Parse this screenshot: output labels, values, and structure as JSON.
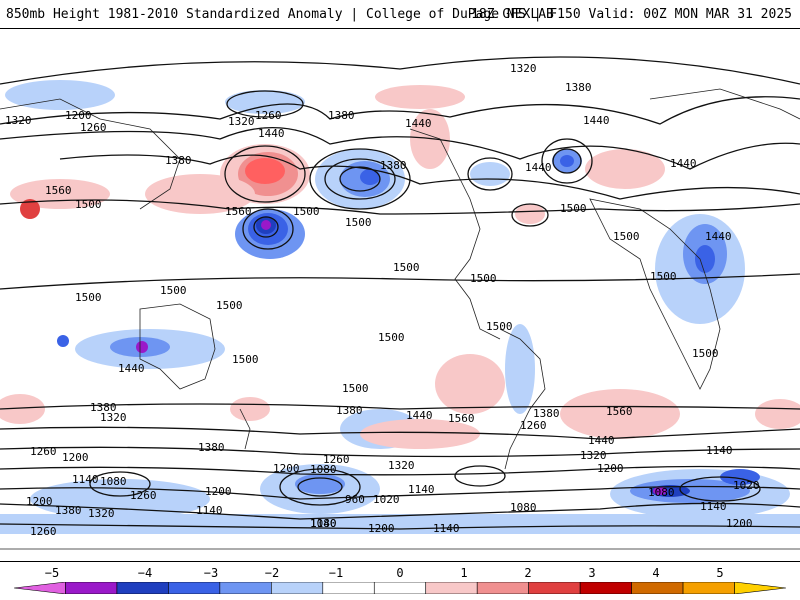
{
  "header": {
    "left_title": "850mb Height 1981-2010 Standardized Anomaly | College of DuPage NEXLAB",
    "right_title": "18Z GFS | F150 Valid: 00Z MON MAR 31 2025"
  },
  "map": {
    "type": "global-map",
    "projection": "cylindrical",
    "contour_labels": [
      {
        "text": "1320",
        "id": "c1320-top"
      },
      {
        "text": "1380",
        "id": "c1380-npac"
      },
      {
        "text": "1260",
        "id": "c1260-npac"
      },
      {
        "text": "1200",
        "id": "c1200-asia"
      },
      {
        "text": "1320",
        "id": "c1320-asia"
      },
      {
        "text": "1260",
        "id": "c1260-asia"
      },
      {
        "text": "1440",
        "id": "c1440-asia"
      },
      {
        "text": "1380",
        "id": "c1380-asia"
      },
      {
        "text": "1320",
        "id": "c1320-nat"
      },
      {
        "text": "1440",
        "id": "c1440-nat"
      },
      {
        "text": "1380",
        "id": "c1380-can"
      },
      {
        "text": "1440",
        "id": "c1440-can"
      },
      {
        "text": "1380",
        "id": "c1380-atl"
      },
      {
        "text": "1440",
        "id": "c1440-eur"
      },
      {
        "text": "1440",
        "id": "c1440-us"
      },
      {
        "text": "1500",
        "id": "c1500-atl"
      },
      {
        "text": "1500",
        "id": "c1500-afr"
      },
      {
        "text": "1440",
        "id": "c1440-afr"
      },
      {
        "text": "1500",
        "id": "c1500-afr2"
      },
      {
        "text": "1560",
        "id": "c1560-npac"
      },
      {
        "text": "1500",
        "id": "c1500-npac"
      },
      {
        "text": "1500",
        "id": "c1500-cpac"
      },
      {
        "text": "1560",
        "id": "c1560-ind"
      },
      {
        "text": "1500",
        "id": "c1500-ind"
      },
      {
        "text": "1500",
        "id": "c1500-ind2"
      },
      {
        "text": "1500",
        "id": "c1500-pac"
      },
      {
        "text": "1500",
        "id": "c1500-pac2"
      },
      {
        "text": "1500",
        "id": "c1500-pac3"
      },
      {
        "text": "1500",
        "id": "c1500-sam"
      },
      {
        "text": "1500",
        "id": "c1500-aus"
      },
      {
        "text": "1500",
        "id": "c1500-aus2"
      },
      {
        "text": "1500",
        "id": "c1500-afr3"
      },
      {
        "text": "1500",
        "id": "c1500-sio"
      },
      {
        "text": "1440",
        "id": "c1440-sio"
      },
      {
        "text": "1380",
        "id": "c1380-sio"
      },
      {
        "text": "1320",
        "id": "c1320-sio"
      },
      {
        "text": "1260",
        "id": "c1260-sio"
      },
      {
        "text": "1200",
        "id": "c1200-sio"
      },
      {
        "text": "1140",
        "id": "c1140-sio"
      },
      {
        "text": "1080",
        "id": "c1080-sio"
      },
      {
        "text": "1260",
        "id": "c1260-sio2"
      },
      {
        "text": "1200",
        "id": "c1200-sio2"
      },
      {
        "text": "1380",
        "id": "c1380-sio2"
      },
      {
        "text": "1320",
        "id": "c1320-sio2"
      },
      {
        "text": "1260",
        "id": "c1260-sio3"
      },
      {
        "text": "1380",
        "id": "c1380-spac"
      },
      {
        "text": "1500",
        "id": "c1500-spac"
      },
      {
        "text": "1380",
        "id": "c1380-spac2"
      },
      {
        "text": "1440",
        "id": "c1440-spac"
      },
      {
        "text": "1560",
        "id": "c1560-spac"
      },
      {
        "text": "1200",
        "id": "c1200-spac"
      },
      {
        "text": "1260",
        "id": "c1260-spac"
      },
      {
        "text": "1080",
        "id": "c1080-spac"
      },
      {
        "text": "960",
        "id": "c960-spac"
      },
      {
        "text": "1020",
        "id": "c1020-spac"
      },
      {
        "text": "1320",
        "id": "c1320-spac"
      },
      {
        "text": "1140",
        "id": "c1140-spac"
      },
      {
        "text": "1140",
        "id": "c1140-sam"
      },
      {
        "text": "1080",
        "id": "c1080-sam"
      },
      {
        "text": "1200",
        "id": "c1200-sam"
      },
      {
        "text": "1140",
        "id": "c1140-sam2"
      },
      {
        "text": "1380",
        "id": "c1380-satl"
      },
      {
        "text": "1260",
        "id": "c1260-satl"
      },
      {
        "text": "1560",
        "id": "c1560-satl"
      },
      {
        "text": "1440",
        "id": "c1440-satl"
      },
      {
        "text": "1320",
        "id": "c1320-satl"
      },
      {
        "text": "1200",
        "id": "c1200-satl"
      },
      {
        "text": "1140",
        "id": "c1140-sio4"
      },
      {
        "text": "1020",
        "id": "c1020-sio4"
      },
      {
        "text": "1080",
        "id": "c1080-sio4"
      },
      {
        "text": "1140",
        "id": "c1140-sio5"
      },
      {
        "text": "1200",
        "id": "c1200-sio5"
      },
      {
        "text": "1080",
        "id": "c1080-sant"
      },
      {
        "text": "1200",
        "id": "c1200-sant"
      },
      {
        "text": "1140",
        "id": "c1140-sant"
      }
    ]
  },
  "colorbar": {
    "ticks": [
      "−5",
      "−4",
      "−3",
      "−2",
      "−1",
      "0",
      "1",
      "2",
      "3",
      "4",
      "5"
    ],
    "colors": [
      "#e060e0",
      "#9a19c9",
      "#1f3fbf",
      "#3a62e6",
      "#6e95f2",
      "#b8d2fa",
      "#ffffff",
      "#ffffff",
      "#f8c8c8",
      "#f09090",
      "#e04040",
      "#c00000",
      "#d06a00",
      "#f5a000",
      "#ffd000"
    ]
  }
}
